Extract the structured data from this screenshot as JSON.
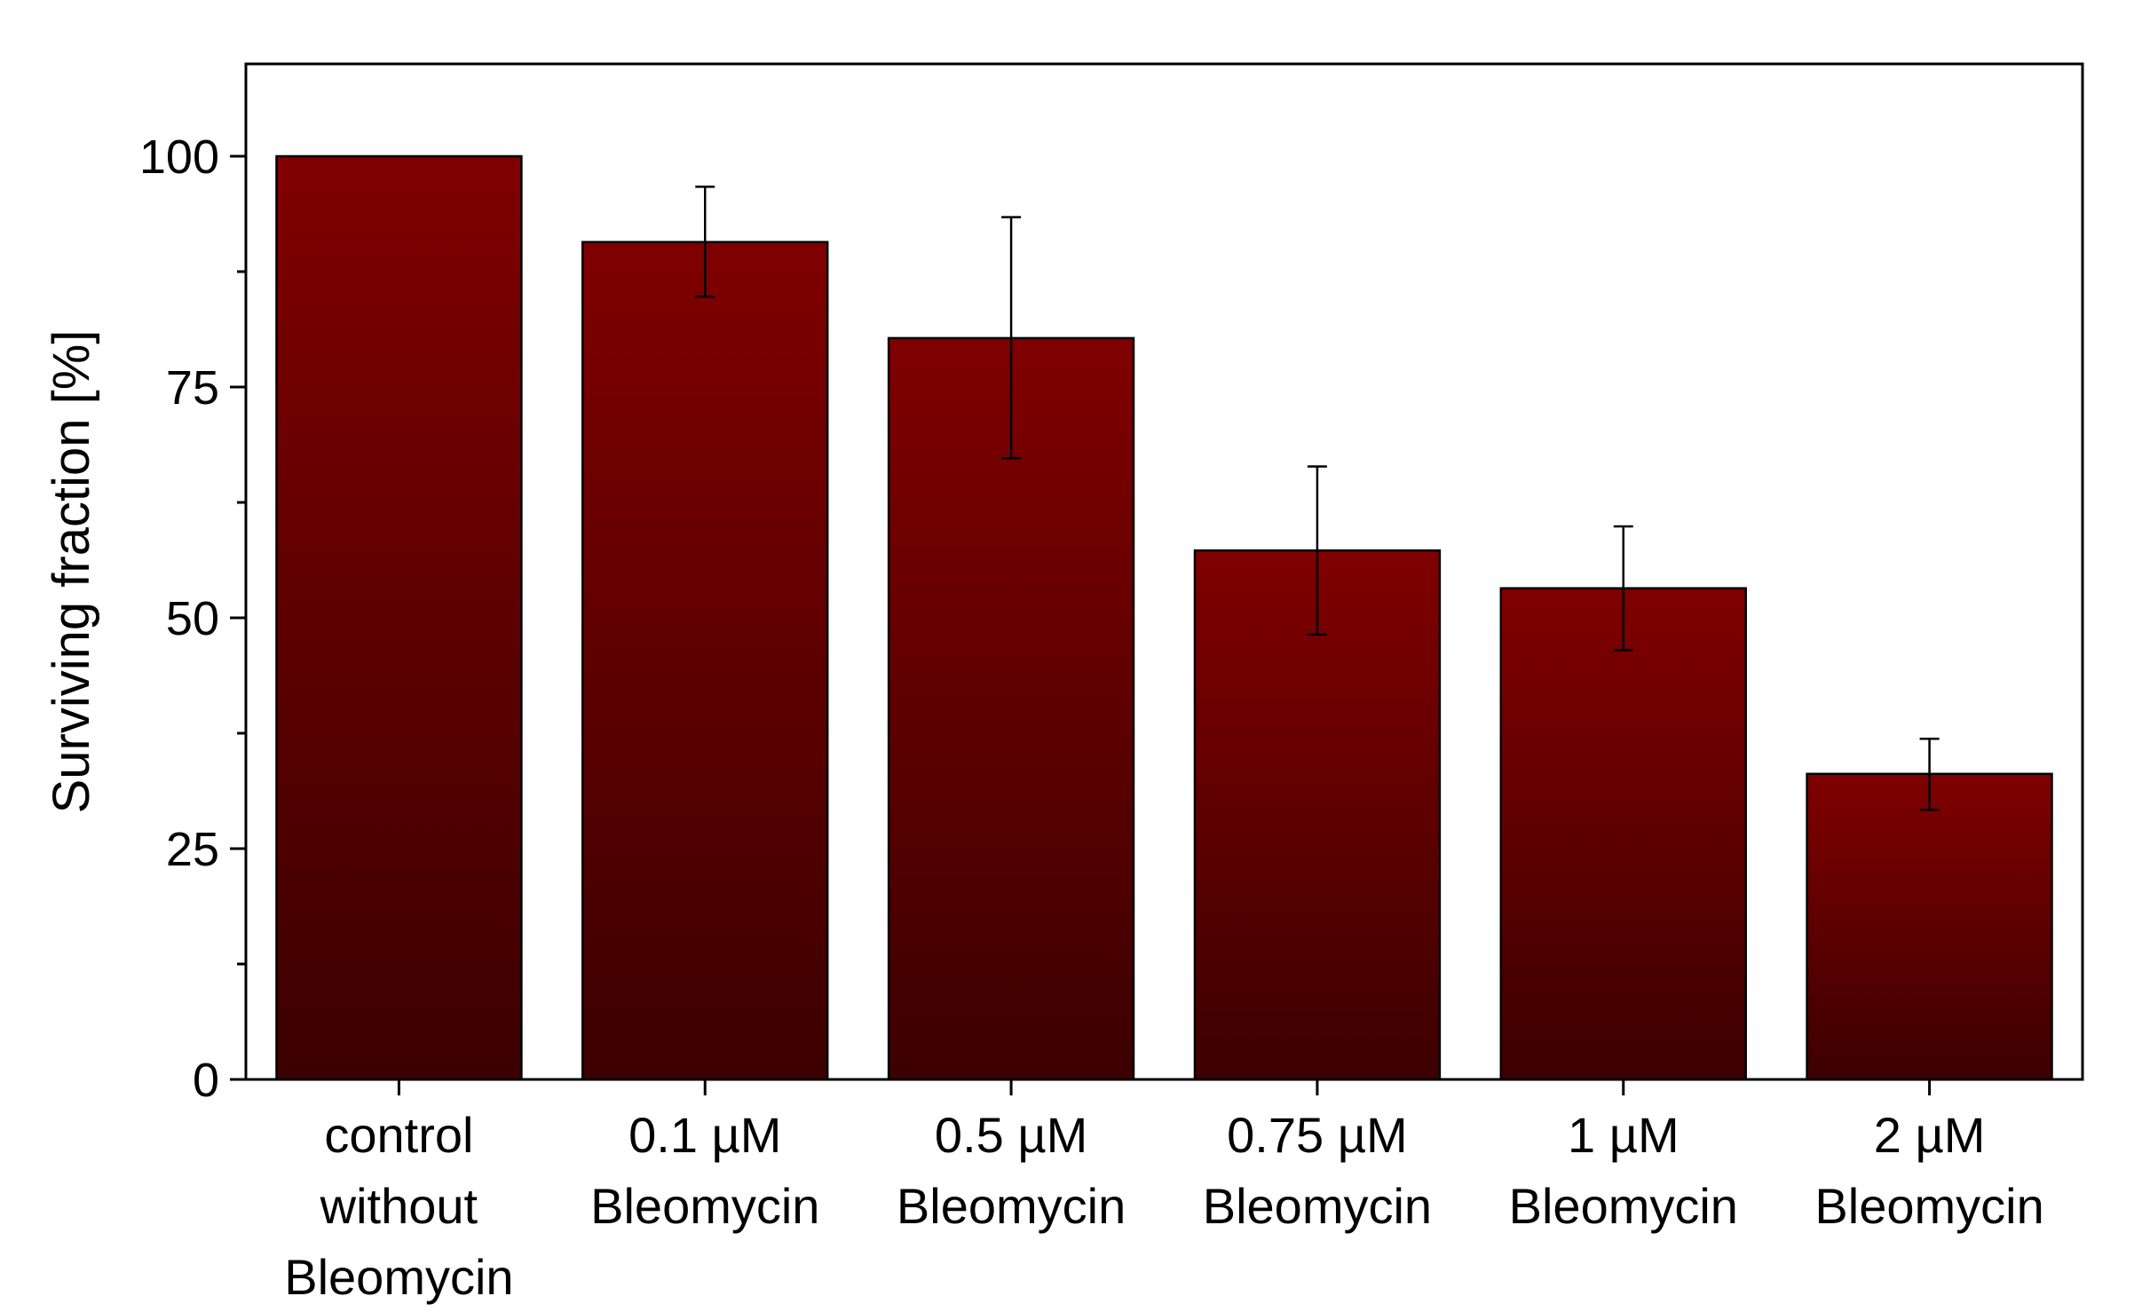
{
  "chart_data": {
    "type": "bar",
    "title": "",
    "xlabel": "",
    "ylabel": "Surviving fraction [%]",
    "ylim": [
      0,
      110
    ],
    "yticks": [
      0,
      25,
      50,
      75,
      100
    ],
    "grid": false,
    "legend": "none",
    "categories": [
      [
        "control",
        "without",
        "Bleomycin"
      ],
      [
        "0.1 µM",
        "Bleomycin"
      ],
      [
        "0.5 µM",
        "Bleomycin"
      ],
      [
        "0.75 µM",
        "Bleomycin"
      ],
      [
        "1 µM",
        "Bleomycin"
      ],
      [
        "2 µM",
        "Bleomycin"
      ]
    ],
    "series": [
      {
        "name": "Surviving fraction",
        "values": [
          100,
          90.7,
          80.3,
          57.3,
          53.2,
          33.1
        ],
        "error_upper": [
          100,
          96.7,
          93.4,
          66.4,
          59.9,
          36.9
        ],
        "error_lower": [
          100,
          84.8,
          67.3,
          48.2,
          46.5,
          29.2
        ]
      }
    ],
    "colors": {
      "bar_top": "#800000",
      "bar_bottom": "#3c0000",
      "axis": "#000000",
      "error_bar": "#000000"
    }
  }
}
